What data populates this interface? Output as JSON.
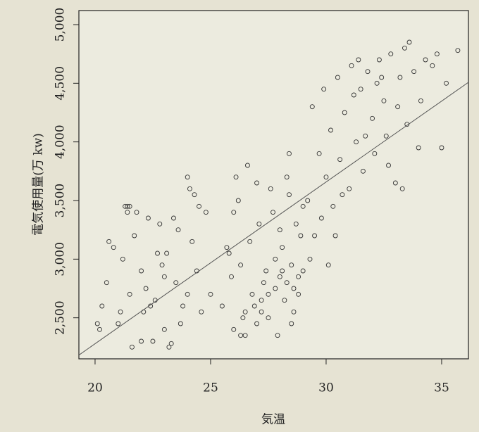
{
  "chart_data": {
    "type": "scatter",
    "x_label": "気温",
    "y_label": "電気使用量(万 kw)",
    "color": "#333333",
    "x": [
      20.1,
      20.3,
      20.5,
      20.8,
      21.0,
      21.2,
      21.3,
      21.5,
      21.6,
      21.8,
      22.0,
      22.1,
      22.3,
      22.5,
      22.6,
      22.8,
      23.0,
      23.1,
      23.3,
      23.5,
      23.6,
      23.8,
      24.0,
      24.2,
      24.4,
      24.6,
      24.8,
      25.0,
      20.2,
      20.6,
      21.1,
      21.4,
      21.7,
      22.0,
      22.4,
      22.7,
      23.0,
      23.4,
      23.7,
      24.1,
      24.5,
      21.4,
      21.5,
      22.2,
      22.9,
      23.2,
      24.3,
      24.0,
      25.5,
      25.8,
      26.0,
      26.2,
      26.3,
      26.5,
      26.6,
      26.8,
      27.0,
      27.1,
      27.2,
      27.4,
      27.5,
      27.6,
      27.8,
      28.0,
      28.1,
      28.2,
      28.3,
      28.4,
      28.5,
      28.6,
      28.7,
      28.8,
      29.0,
      25.9,
      26.1,
      26.4,
      26.7,
      26.9,
      27.3,
      27.7,
      27.9,
      28.1,
      28.4,
      28.6,
      28.9,
      26.0,
      26.5,
      27.0,
      27.5,
      28.0,
      28.5,
      29.0,
      26.3,
      27.2,
      27.8,
      28.3,
      28.8,
      25.7,
      29.2,
      29.4,
      29.5,
      29.7,
      29.9,
      30.0,
      30.2,
      30.3,
      30.5,
      30.6,
      30.8,
      31.0,
      31.1,
      31.3,
      31.5,
      31.6,
      31.8,
      32.0,
      32.1,
      32.3,
      32.5,
      32.6,
      32.8,
      33.0,
      33.2,
      33.4,
      33.5,
      33.8,
      34.0,
      34.3,
      34.6,
      35.0,
      35.2,
      35.7,
      29.3,
      29.8,
      30.1,
      30.7,
      31.2,
      31.7,
      32.2,
      32.7,
      33.1,
      33.6,
      34.1,
      34.8,
      30.4,
      31.4,
      32.4,
      33.3
    ],
    "values": [
      2450,
      2600,
      2800,
      3100,
      2450,
      3000,
      3450,
      2700,
      2250,
      3400,
      2900,
      2550,
      3350,
      2300,
      2650,
      3300,
      2400,
      3050,
      2280,
      2800,
      3250,
      2600,
      3700,
      3150,
      2900,
      2550,
      3400,
      2700,
      2400,
      3150,
      2550,
      3450,
      3200,
      2300,
      2600,
      3050,
      2850,
      3350,
      2450,
      3600,
      3450,
      3400,
      3450,
      2750,
      2950,
      2250,
      3550,
      2700,
      2600,
      3050,
      2400,
      3500,
      2350,
      2550,
      3800,
      2700,
      2450,
      3300,
      2650,
      2900,
      2500,
      3600,
      2750,
      2850,
      3100,
      2650,
      2800,
      3900,
      2950,
      2550,
      3300,
      2700,
      3450,
      2850,
      3700,
      2500,
      3150,
      2600,
      2800,
      3400,
      2350,
      2900,
      3550,
      2750,
      3200,
      3400,
      2350,
      3650,
      2700,
      3250,
      2450,
      2900,
      2950,
      2550,
      3000,
      3700,
      2850,
      3100,
      3500,
      4300,
      3200,
      3900,
      4450,
      3700,
      4100,
      3450,
      4550,
      3850,
      4250,
      3600,
      4650,
      4000,
      4450,
      3750,
      4600,
      4200,
      3900,
      4700,
      4350,
      4050,
      4750,
      3650,
      4550,
      4800,
      4150,
      4600,
      3950,
      4700,
      4650,
      3950,
      4500,
      4780,
      3000,
      3350,
      2950,
      3550,
      4400,
      4050,
      4500,
      3800,
      4300,
      4850,
      4350,
      4750,
      3200,
      4700,
      4550,
      3600
    ],
    "fit": {
      "color": "#555555",
      "x": [
        19.3,
        36.16
      ],
      "values": [
        2182,
        4508
      ]
    },
    "xlim": [
      19.3,
      36.16
    ],
    "ylim": [
      2150,
      5120
    ],
    "xticks": [
      20,
      25,
      30,
      35
    ],
    "yticks": [
      {
        "value": 2500,
        "label": "2,500"
      },
      {
        "value": 3000,
        "label": "3,000"
      },
      {
        "value": 3500,
        "label": "3,500"
      },
      {
        "value": 4000,
        "label": "4,000"
      },
      {
        "value": 4500,
        "label": "4,500"
      },
      {
        "value": 5000,
        "label": "5,000"
      }
    ]
  }
}
